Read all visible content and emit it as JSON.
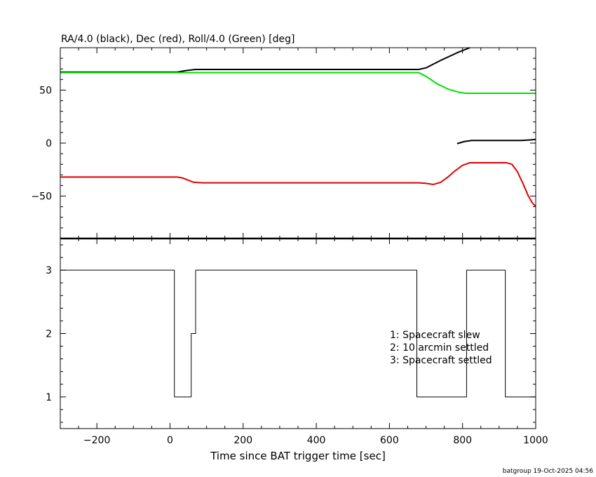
{
  "chart_data": [
    {
      "type": "line",
      "title": "RA/4.0 (black), Dec (red), Roll/4.0 (Green) [deg]",
      "xlim": [
        -300,
        1000
      ],
      "ylim": [
        -90,
        90
      ],
      "y_ticks": [
        50,
        0,
        -50
      ],
      "y_tick_labels": [
        "50",
        "0",
        "−50"
      ],
      "series": [
        {
          "color": "#000000",
          "points": [
            [
              -300,
              67
            ],
            [
              20,
              67
            ],
            [
              45,
              68.5
            ],
            [
              70,
              69.5
            ],
            [
              680,
              69.5
            ],
            [
              700,
              71
            ],
            [
              740,
              78
            ],
            [
              790,
              86
            ],
            [
              820,
              90
            ]
          ]
        },
        {
          "color": "#000000",
          "points": [
            [
              785,
              -0.5
            ],
            [
              805,
              1.5
            ],
            [
              825,
              2.5
            ],
            [
              900,
              2.5
            ],
            [
              960,
              2.5
            ],
            [
              985,
              3
            ],
            [
              1000,
              3.5
            ]
          ]
        },
        {
          "color": "#00e000",
          "points": [
            [
              -300,
              66.5
            ],
            [
              680,
              66.5
            ],
            [
              700,
              63
            ],
            [
              730,
              56
            ],
            [
              760,
              51
            ],
            [
              790,
              48
            ],
            [
              810,
              47
            ],
            [
              1000,
              47
            ]
          ]
        },
        {
          "color": "#e00000",
          "points": [
            [
              -300,
              -32
            ],
            [
              20,
              -32
            ],
            [
              35,
              -33
            ],
            [
              50,
              -35
            ],
            [
              65,
              -37
            ],
            [
              90,
              -37.5
            ],
            [
              680,
              -37.5
            ],
            [
              700,
              -38
            ],
            [
              720,
              -39
            ],
            [
              740,
              -37
            ],
            [
              760,
              -32
            ],
            [
              780,
              -26
            ],
            [
              800,
              -21
            ],
            [
              820,
              -18.5
            ],
            [
              920,
              -18.5
            ],
            [
              935,
              -20
            ],
            [
              950,
              -27
            ],
            [
              965,
              -38
            ],
            [
              980,
              -50
            ],
            [
              990,
              -56
            ],
            [
              1000,
              -60
            ]
          ]
        }
      ]
    },
    {
      "type": "line",
      "xlabel": "Time since BAT trigger time [sec]",
      "xlim": [
        -300,
        1000
      ],
      "ylim": [
        0.5,
        3.5
      ],
      "x_ticks": [
        -200,
        0,
        200,
        400,
        600,
        800,
        1000
      ],
      "x_tick_labels": [
        "−200",
        "0",
        "200",
        "400",
        "600",
        "800",
        "1000"
      ],
      "y_ticks": [
        1,
        2,
        3
      ],
      "y_tick_labels": [
        "1",
        "2",
        "3"
      ],
      "series": [
        {
          "color": "#000000",
          "step": true,
          "points": [
            [
              -300,
              3
            ],
            [
              12,
              3
            ],
            [
              12,
              1
            ],
            [
              58,
              1
            ],
            [
              58,
              2
            ],
            [
              70,
              2
            ],
            [
              70,
              3
            ],
            [
              675,
              3
            ],
            [
              675,
              1
            ],
            [
              811,
              1
            ],
            [
              811,
              3
            ],
            [
              917,
              3
            ],
            [
              917,
              1
            ],
            [
              1000,
              1
            ]
          ]
        }
      ],
      "annotations": [
        "1: Spacecraft slew",
        "2: 10 arcmin settled",
        "3: Spacecraft settled"
      ]
    }
  ],
  "footer": "batgroup 19-Oct-2025 04:56"
}
